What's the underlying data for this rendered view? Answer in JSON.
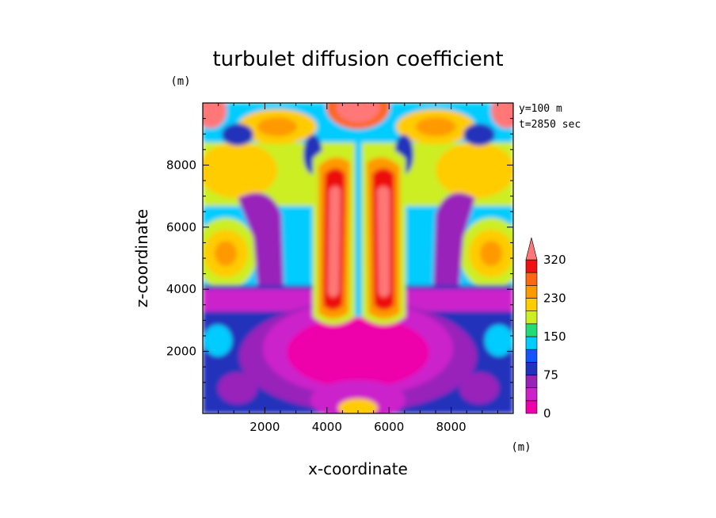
{
  "chart_data": {
    "type": "heatmap",
    "title": "turbulet diffusion coefficient",
    "xlabel": "x-coordinate",
    "ylabel": "z-coordinate",
    "x_unit": "(m)",
    "y_unit": "(m)",
    "annotations": [
      "y=100 m",
      "t=2850 sec"
    ],
    "xlim": [
      0,
      10000
    ],
    "ylim": [
      0,
      10000
    ],
    "x_ticks": [
      2000,
      4000,
      6000,
      8000
    ],
    "y_ticks": [
      2000,
      4000,
      6000,
      8000
    ],
    "x_tick_labels": [
      "2000",
      "4000",
      "6000",
      "8000"
    ],
    "y_tick_labels": [
      "2000",
      "4000",
      "6000",
      "8000"
    ],
    "colorbar": {
      "levels": [
        0,
        25,
        50,
        75,
        100,
        125,
        150,
        175,
        200,
        230,
        260,
        290,
        320
      ],
      "labels": [
        {
          "value": 0,
          "text": "0"
        },
        {
          "value": 75,
          "text": "75"
        },
        {
          "value": 150,
          "text": "150"
        },
        {
          "value": 230,
          "text": "230"
        },
        {
          "value": 320,
          "text": "320"
        }
      ],
      "colors": [
        "#ee00aa",
        "#cc22cc",
        "#9922bb",
        "#2233bb",
        "#1155ff",
        "#00ccff",
        "#22dd77",
        "#ccee22",
        "#ffcc00",
        "#ff9900",
        "#ff6611",
        "#ee1111"
      ],
      "overflow_color": "#ff7777",
      "extend": "max"
    },
    "features": [
      {
        "name": "central-plume-left",
        "x": 4300,
        "z_range": [
          3000,
          8500
        ],
        "value": 300
      },
      {
        "name": "central-plume-right",
        "x": 5750,
        "z_range": [
          3000,
          8500
        ],
        "value": 300
      },
      {
        "name": "upper-side-lobes",
        "z": 8000,
        "value": 220
      },
      {
        "name": "mid-side-lobes",
        "z": 5200,
        "value": 240
      },
      {
        "name": "lower-core",
        "z_range": [
          0,
          3000
        ],
        "value": 10
      }
    ]
  }
}
